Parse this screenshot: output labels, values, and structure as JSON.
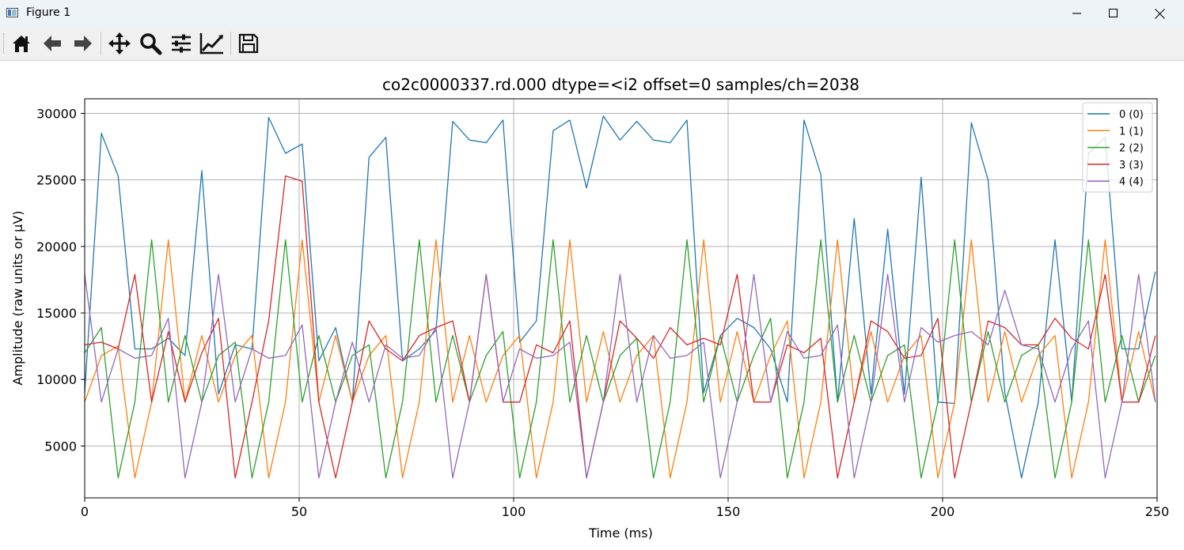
{
  "window": {
    "title": "Figure 1",
    "app_icon": "matplotlib-figure-icon",
    "controls": [
      "minimize-icon",
      "maximize-icon",
      "close-icon"
    ]
  },
  "toolbar": {
    "buttons": [
      "home-icon",
      "back-arrow-icon",
      "forward-arrow-icon",
      "pan-icon",
      "zoom-icon",
      "configure-subplots-icon",
      "edit-axes-icon",
      "save-icon"
    ]
  },
  "chart_data": {
    "type": "line",
    "title": "co2c0000337.rd.000  dtype=<i2 offset=0 samples/ch=2038",
    "xlabel": "Time (ms)",
    "ylabel": "Amplitude (raw units or µV)",
    "xlim": [
      0,
      250
    ],
    "ylim": [
      1100,
      31100
    ],
    "xticks": [
      0,
      50,
      100,
      150,
      200,
      250
    ],
    "xtick_labels": [
      "0",
      "50",
      "100",
      "150",
      "200",
      "250"
    ],
    "yticks": [
      5000,
      10000,
      15000,
      20000,
      25000,
      30000
    ],
    "ytick_labels": [
      "5000",
      "10000",
      "15000",
      "20000",
      "25000",
      "30000"
    ],
    "grid": true,
    "legend_position": "top-right",
    "series": [
      {
        "name": "0 (0)",
        "color": "#1f77b4",
        "x": [
          0,
          3.9,
          7.8,
          11.7,
          15.6,
          19.5,
          23.4,
          27.3,
          31.2,
          35.1,
          39,
          42.9,
          46.8,
          50.7,
          54.6,
          58.5,
          62.4,
          66.3,
          70.2,
          74.1,
          78,
          81.9,
          85.8,
          89.7,
          93.6,
          97.5,
          101.4,
          105.3,
          109.2,
          113.1,
          117,
          120.9,
          124.8,
          128.7,
          132.6,
          136.5,
          140.4,
          144.3,
          148.2,
          152.1,
          156,
          159.9,
          163.8,
          167.7,
          171.6,
          175.5,
          179.4,
          183.3,
          187.2,
          191.1,
          195,
          198.9,
          202.8,
          206.7,
          210.6,
          214.5,
          218.4,
          222.3,
          226.2,
          230.1,
          234,
          237.9,
          241.8,
          245.7,
          249.6
        ],
        "y": [
          9000,
          28500,
          25300,
          12300,
          12300,
          13100,
          11800,
          25700,
          8900,
          12600,
          12300,
          29700,
          27000,
          27700,
          11400,
          13900,
          8300,
          26700,
          28200,
          11400,
          12300,
          13700,
          29400,
          28000,
          27800,
          29500,
          12800,
          14400,
          28700,
          29500,
          24400,
          29800,
          28000,
          29400,
          28000,
          27800,
          29500,
          9000,
          13300,
          14600,
          13900,
          12300,
          8300,
          29500,
          25400,
          8300,
          22100,
          8900,
          21300,
          8900,
          25200,
          8300,
          8200,
          29300,
          25000,
          9000,
          2600,
          8300,
          20500,
          8300,
          27000,
          28200,
          12300,
          12300,
          18100
        ]
      },
      {
        "name": "1 (1)",
        "color": "#ff7f0e",
        "x": [
          0,
          3.9,
          7.8,
          11.7,
          15.6,
          19.5,
          23.4,
          27.3,
          31.2,
          35.1,
          39,
          42.9,
          46.8,
          50.7,
          54.6,
          58.5,
          62.4,
          66.3,
          70.2,
          74.1,
          78,
          81.9,
          85.8,
          89.7,
          93.6,
          97.5,
          101.4,
          105.3,
          109.2,
          113.1,
          117,
          120.9,
          124.8,
          128.7,
          132.6,
          136.5,
          140.4,
          144.3,
          148.2,
          152.1,
          156,
          159.9,
          163.8,
          167.7,
          171.6,
          175.5,
          179.4,
          183.3,
          187.2,
          191.1,
          195,
          198.9,
          202.8,
          206.7,
          210.6,
          214.5,
          218.4,
          222.3,
          226.2,
          230.1,
          234,
          237.9,
          241.8,
          245.7,
          249.6
        ],
        "y": [
          8300,
          11800,
          12500,
          2600,
          8300,
          20500,
          8300,
          13300,
          8300,
          11800,
          13300,
          2600,
          8300,
          20500,
          8300,
          13300,
          8300,
          11800,
          13300,
          2600,
          8300,
          20500,
          8300,
          13300,
          8300,
          11800,
          13300,
          2600,
          8300,
          20500,
          8300,
          13600,
          8300,
          11800,
          13300,
          2600,
          8300,
          20500,
          8300,
          13600,
          8300,
          11800,
          14400,
          2600,
          8300,
          20500,
          8300,
          13600,
          8300,
          11800,
          13300,
          2600,
          8300,
          20500,
          8300,
          13600,
          8300,
          11800,
          13300,
          2600,
          8300,
          20500,
          8300,
          13600,
          8300
        ]
      },
      {
        "name": "2 (2)",
        "color": "#2ca02c",
        "x": [
          0,
          3.9,
          7.8,
          11.7,
          15.6,
          19.5,
          23.4,
          27.3,
          31.2,
          35.1,
          39,
          42.9,
          46.8,
          50.7,
          54.6,
          58.5,
          62.4,
          66.3,
          70.2,
          74.1,
          78,
          81.9,
          85.8,
          89.7,
          93.6,
          97.5,
          101.4,
          105.3,
          109.2,
          113.1,
          117,
          120.9,
          124.8,
          128.7,
          132.6,
          136.5,
          140.4,
          144.3,
          148.2,
          152.1,
          156,
          159.9,
          163.8,
          167.7,
          171.6,
          175.5,
          179.4,
          183.3,
          187.2,
          191.1,
          195,
          198.9,
          202.8,
          206.7,
          210.6,
          214.5,
          218.4,
          222.3,
          226.2,
          230.1,
          234,
          237.9,
          241.8,
          245.7,
          249.6
        ],
        "y": [
          12000,
          13900,
          2600,
          8300,
          20500,
          8300,
          13300,
          8300,
          11800,
          12800,
          2600,
          8300,
          20500,
          8300,
          13300,
          8300,
          11800,
          12600,
          2600,
          8300,
          20500,
          8300,
          13300,
          8300,
          11800,
          13600,
          2600,
          8300,
          20500,
          8300,
          13300,
          8300,
          11800,
          13100,
          2600,
          8300,
          20500,
          8300,
          13300,
          8300,
          11800,
          14600,
          2600,
          8300,
          20500,
          8300,
          13300,
          8300,
          11800,
          12600,
          2600,
          8300,
          20500,
          8300,
          13600,
          8300,
          11800,
          12600,
          2600,
          8300,
          20500,
          8300,
          13300,
          8300,
          11800
        ]
      },
      {
        "name": "3 (3)",
        "color": "#d62728",
        "x": [
          0,
          3.9,
          7.8,
          11.7,
          15.6,
          19.5,
          23.4,
          27.3,
          31.2,
          35.1,
          39,
          42.9,
          46.8,
          50.7,
          54.6,
          58.5,
          62.4,
          66.3,
          70.2,
          74.1,
          78,
          81.9,
          85.8,
          89.7,
          93.6,
          97.5,
          101.4,
          105.3,
          109.2,
          113.1,
          117,
          120.9,
          124.8,
          128.7,
          132.6,
          136.5,
          140.4,
          144.3,
          148.2,
          152.1,
          156,
          159.9,
          163.8,
          167.7,
          171.6,
          175.5,
          179.4,
          183.3,
          187.2,
          191.1,
          195,
          198.9,
          202.8,
          206.7,
          210.6,
          214.5,
          218.4,
          222.3,
          226.2,
          230.1,
          234,
          237.9,
          241.8,
          245.7,
          249.6
        ],
        "y": [
          12600,
          12800,
          12300,
          17900,
          8300,
          13600,
          8300,
          12000,
          14600,
          2600,
          8300,
          14400,
          25300,
          24900,
          8300,
          2600,
          8300,
          14400,
          12300,
          11400,
          13300,
          13900,
          14400,
          8300,
          17900,
          8300,
          8300,
          12600,
          12000,
          14400,
          2600,
          8300,
          14400,
          13100,
          11600,
          13900,
          12600,
          13100,
          12600,
          17900,
          8300,
          8300,
          12600,
          12000,
          13100,
          2600,
          8300,
          14400,
          13600,
          11600,
          11800,
          14600,
          2600,
          8300,
          14400,
          13900,
          12600,
          12600,
          14600,
          13100,
          12300,
          17900,
          8300,
          8300,
          13300
        ]
      },
      {
        "name": "4 (4)",
        "color": "#9467bd",
        "x": [
          0,
          3.9,
          7.8,
          11.7,
          15.6,
          19.5,
          23.4,
          27.3,
          31.2,
          35.1,
          39,
          42.9,
          46.8,
          50.7,
          54.6,
          58.5,
          62.4,
          66.3,
          70.2,
          74.1,
          78,
          81.9,
          85.8,
          89.7,
          93.6,
          97.5,
          101.4,
          105.3,
          109.2,
          113.1,
          117,
          120.9,
          124.8,
          128.7,
          132.6,
          136.5,
          140.4,
          144.3,
          148.2,
          152.1,
          156,
          159.9,
          163.8,
          167.7,
          171.6,
          175.5,
          179.4,
          183.3,
          187.2,
          191.1,
          195,
          198.9,
          202.8,
          206.7,
          210.6,
          214.5,
          218.4,
          222.3,
          226.2,
          230.1,
          234,
          237.9,
          241.8,
          245.7,
          249.6
        ],
        "y": [
          17900,
          8300,
          12300,
          11600,
          11800,
          14600,
          2600,
          8300,
          17900,
          8300,
          12300,
          11600,
          11800,
          14100,
          2600,
          8300,
          12800,
          8300,
          12600,
          11600,
          11800,
          13900,
          2600,
          8300,
          17900,
          8300,
          12300,
          11600,
          11800,
          12800,
          2600,
          8300,
          17900,
          8300,
          13300,
          11600,
          11800,
          12800,
          2600,
          8300,
          17900,
          8300,
          13600,
          11600,
          11800,
          14100,
          2600,
          8300,
          17900,
          8300,
          13900,
          12800,
          13300,
          13600,
          12600,
          16700,
          12600,
          12300,
          8300,
          12300,
          14400,
          2600,
          8300,
          17900,
          8300
        ]
      }
    ]
  }
}
